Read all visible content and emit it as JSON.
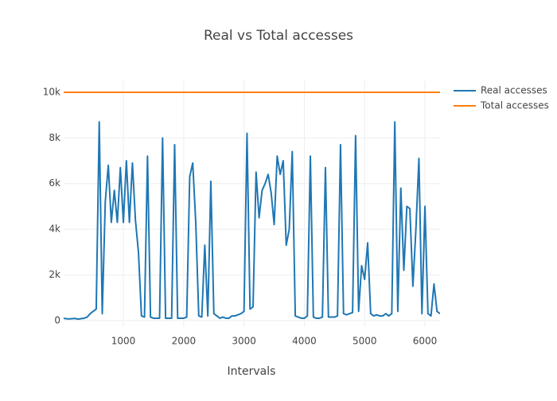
{
  "chart_data": {
    "type": "line",
    "title": "Real vs Total accesses",
    "x_label": "Intervals",
    "xlim": [
      10,
      6250
    ],
    "ylim": [
      -250,
      10500
    ],
    "xticks": [
      1000,
      2000,
      3000,
      4000,
      5000,
      6000
    ],
    "yticks": [
      0,
      {
        "value": 2000,
        "label": "2k"
      },
      {
        "value": 4000,
        "label": "4k"
      },
      {
        "value": 6000,
        "label": "6k"
      },
      {
        "value": 8000,
        "label": "8k"
      },
      {
        "value": 10000,
        "label": "10k"
      }
    ],
    "grid": true,
    "legend": "top-right",
    "series": [
      {
        "name": "Real accesses",
        "color": "#1f77b4",
        "x": [
          0,
          50,
          100,
          150,
          200,
          250,
          300,
          350,
          400,
          450,
          500,
          550,
          600,
          650,
          700,
          750,
          800,
          850,
          900,
          950,
          1000,
          1050,
          1100,
          1150,
          1200,
          1250,
          1300,
          1350,
          1400,
          1450,
          1500,
          1550,
          1600,
          1650,
          1700,
          1750,
          1800,
          1850,
          1900,
          1950,
          2000,
          2050,
          2100,
          2150,
          2200,
          2250,
          2300,
          2350,
          2400,
          2450,
          2500,
          2550,
          2600,
          2650,
          2700,
          2750,
          2800,
          2850,
          2900,
          2950,
          3000,
          3050,
          3100,
          3150,
          3200,
          3250,
          3300,
          3350,
          3400,
          3450,
          3500,
          3550,
          3600,
          3650,
          3700,
          3750,
          3800,
          3850,
          3900,
          3950,
          4000,
          4050,
          4100,
          4150,
          4200,
          4250,
          4300,
          4350,
          4400,
          4450,
          4500,
          4550,
          4600,
          4650,
          4700,
          4750,
          4800,
          4850,
          4900,
          4950,
          5000,
          5050,
          5100,
          5150,
          5200,
          5250,
          5300,
          5350,
          5400,
          5450,
          5500,
          5550,
          5600,
          5650,
          5700,
          5750,
          5800,
          5850,
          5900,
          5950,
          6000,
          6050,
          6100,
          6150,
          6200,
          6250
        ],
        "values": [
          100,
          80,
          70,
          80,
          90,
          60,
          80,
          100,
          150,
          300,
          400,
          500,
          8700,
          300,
          5200,
          6800,
          4300,
          5700,
          4300,
          6700,
          4300,
          7000,
          4300,
          6900,
          4400,
          3000,
          200,
          150,
          7200,
          150,
          100,
          100,
          100,
          8000,
          100,
          100,
          100,
          7700,
          100,
          100,
          100,
          150,
          6300,
          6900,
          4300,
          200,
          150,
          3300,
          200,
          6100,
          300,
          200,
          100,
          150,
          100,
          100,
          200,
          200,
          250,
          300,
          400,
          8200,
          500,
          600,
          6500,
          4500,
          5700,
          6000,
          6400,
          5600,
          4200,
          7200,
          6400,
          7000,
          3300,
          4000,
          7400,
          200,
          150,
          100,
          100,
          200,
          7200,
          150,
          100,
          100,
          150,
          6700,
          150,
          150,
          150,
          200,
          7700,
          300,
          250,
          300,
          350,
          8100,
          400,
          2400,
          1800,
          3400,
          300,
          200,
          250,
          200,
          200,
          300,
          200,
          300,
          8700,
          400,
          5800,
          2200,
          5000,
          4900,
          1500,
          4000,
          7100,
          300,
          5000,
          300,
          200,
          1600,
          400,
          300
        ]
      },
      {
        "name": "Total accesses",
        "color": "#ff7f0e",
        "x": [
          0,
          6250
        ],
        "values": [
          10000,
          10000
        ]
      }
    ]
  }
}
